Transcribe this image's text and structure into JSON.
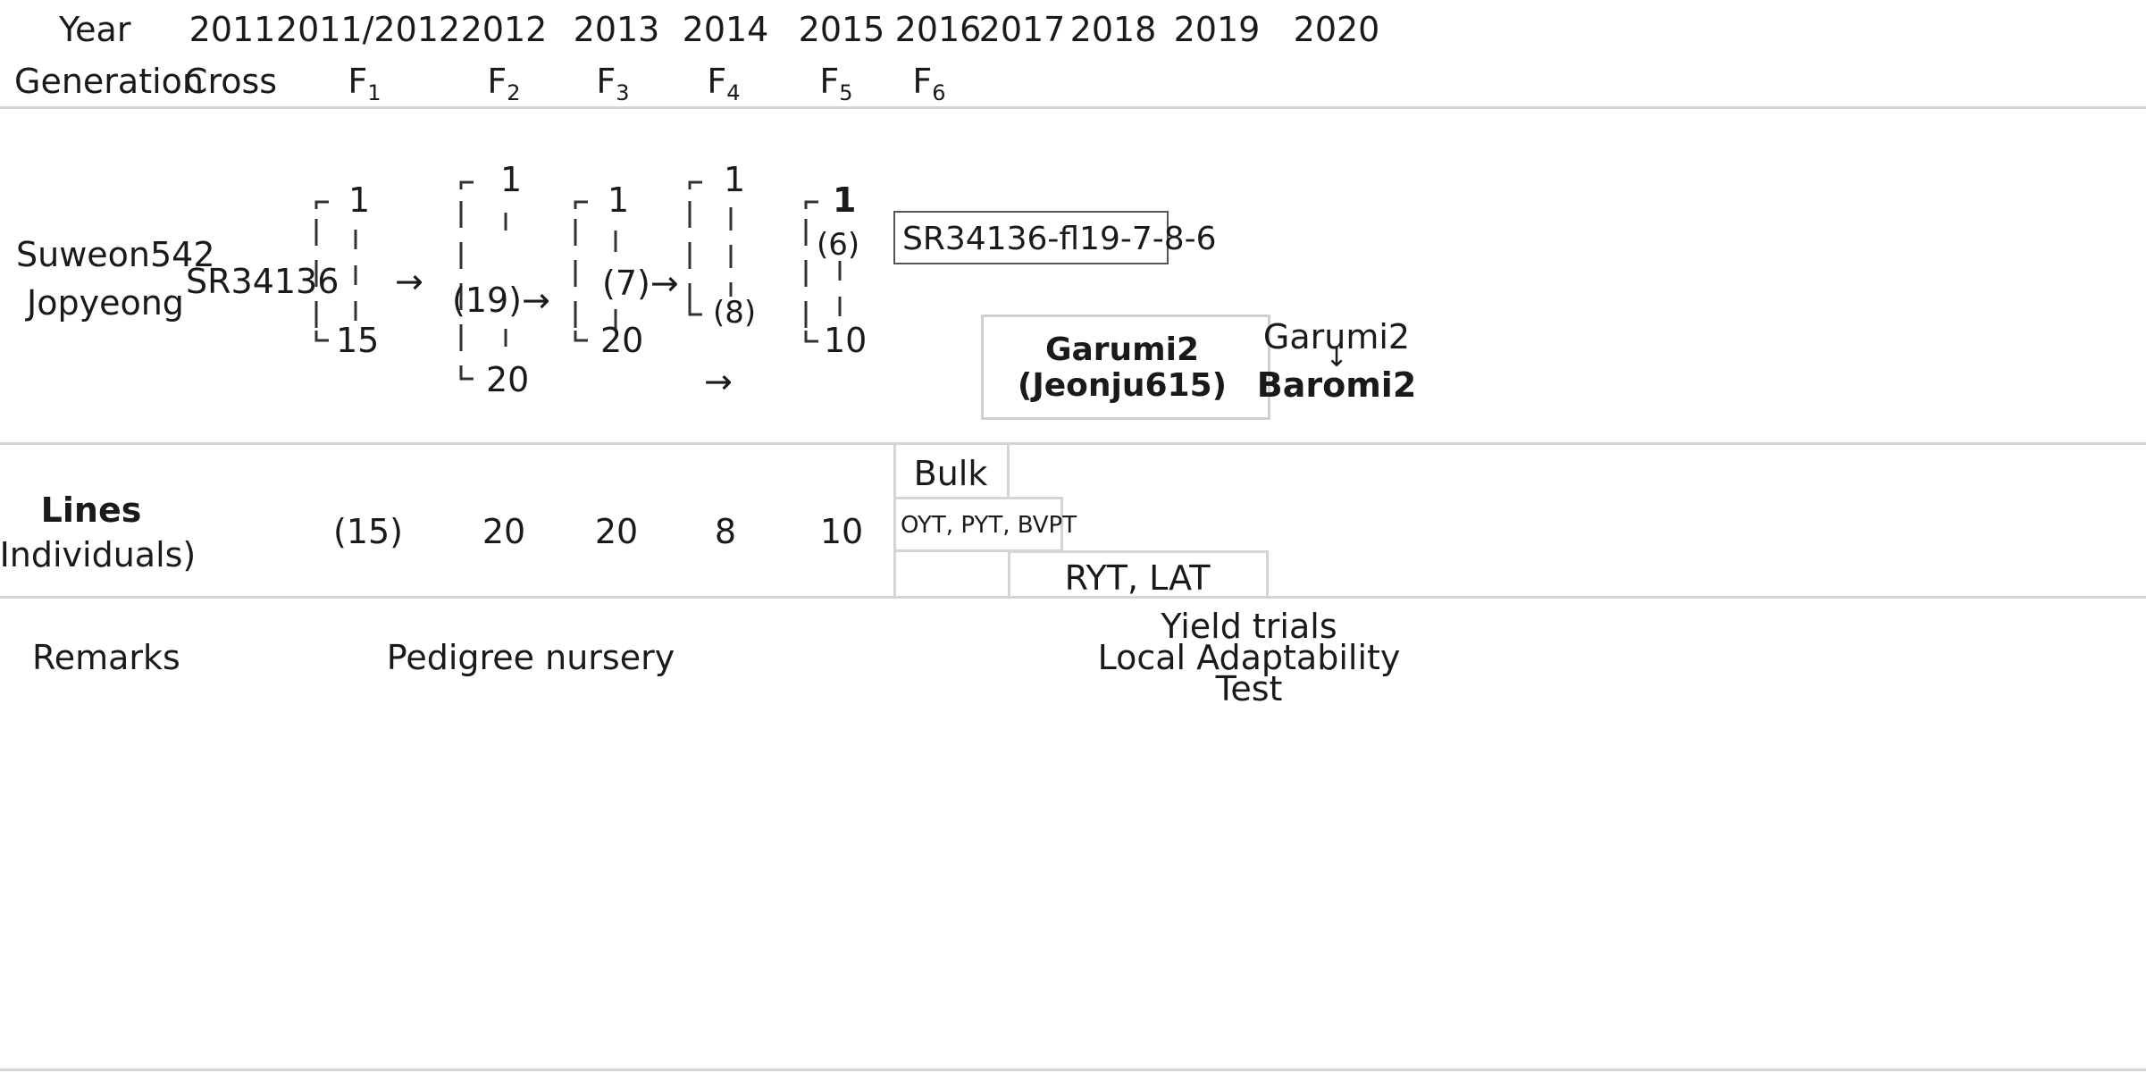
{
  "header": {
    "year_label": "Year",
    "years": [
      "2011",
      "2011/2012",
      "2012",
      "2013",
      "2014",
      "2015",
      "2016",
      "2017",
      "2018",
      "2019",
      "2020"
    ],
    "generation_label": "Generation",
    "generations": [
      {
        "base": "Cross",
        "sub": ""
      },
      {
        "base": "F",
        "sub": "1"
      },
      {
        "base": "F",
        "sub": "2"
      },
      {
        "base": "F",
        "sub": "3"
      },
      {
        "base": "F",
        "sub": "4"
      },
      {
        "base": "F",
        "sub": "5"
      },
      {
        "base": "F",
        "sub": "6"
      }
    ]
  },
  "pedigree": {
    "parents": [
      "Suweon542",
      "Jopyeong"
    ],
    "cross_name": "SR34136",
    "f1": {
      "top": "1",
      "bottom": "15"
    },
    "f2": {
      "top": "1",
      "bottom": "20",
      "selected": "(19)"
    },
    "f3": {
      "top": "1",
      "bottom": "20",
      "selected": "(7)"
    },
    "f4": {
      "top": "1",
      "selected": "(8)"
    },
    "f5": {
      "top": "1",
      "bottom": "10",
      "selected": "(6)"
    },
    "selected_line": "SR34136-fl19-7-8-6",
    "variety": {
      "name": "Garumi2",
      "code": "(Jeonju615)"
    },
    "rename": {
      "from": "Garumi2",
      "arrow": "↓",
      "to": "Baromi2"
    },
    "arrow": "→"
  },
  "lines": {
    "label": [
      "Lines",
      "(Individuals)"
    ],
    "counts": [
      "(15)",
      "20",
      "20",
      "8",
      "10"
    ],
    "bulk": "Bulk",
    "trials_2016": "OYT, PYT, BVPT",
    "trials_later": "RYT, LAT"
  },
  "remarks": {
    "label": "Remarks",
    "nursery": "Pedigree nursery",
    "trials": [
      "Yield trials",
      "Local Adaptability",
      "Test"
    ]
  }
}
